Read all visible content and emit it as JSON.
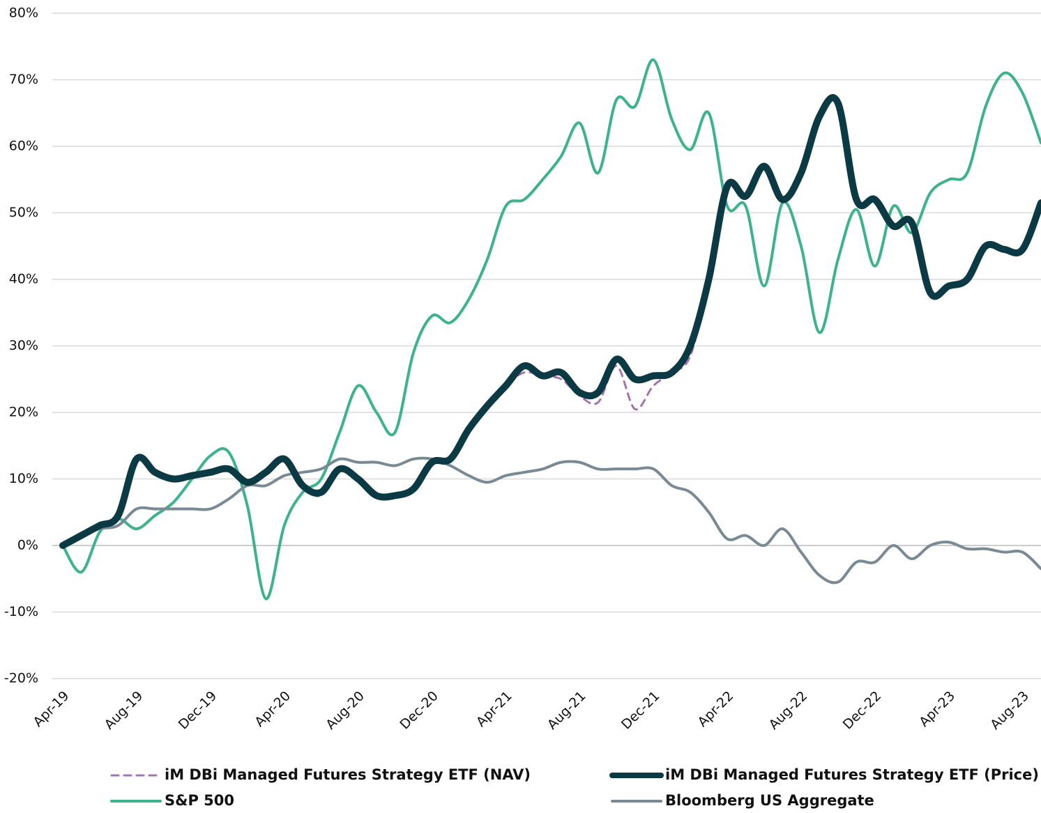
{
  "chart_data": {
    "type": "line",
    "categories": [
      "Apr-19",
      null,
      null,
      null,
      "Aug-19",
      null,
      null,
      null,
      "Dec-19",
      null,
      null,
      null,
      "Apr-20",
      null,
      null,
      null,
      "Aug-20",
      null,
      null,
      null,
      "Dec-20",
      null,
      null,
      null,
      "Apr-21",
      null,
      null,
      null,
      "Aug-21",
      null,
      null,
      null,
      "Dec-21",
      null,
      null,
      null,
      "Apr-22",
      null,
      null,
      null,
      "Aug-22",
      null,
      null,
      null,
      "Dec-22",
      null,
      null,
      null,
      "Apr-23",
      null,
      null,
      null,
      "Aug-23",
      null
    ],
    "ylim": [
      -20,
      80
    ],
    "yticks": [
      {
        "value": -20,
        "label": "-20%"
      },
      {
        "value": -10,
        "label": "-10%"
      },
      {
        "value": 0,
        "label": "0%"
      },
      {
        "value": 10,
        "label": "10%"
      },
      {
        "value": 20,
        "label": "20%"
      },
      {
        "value": 30,
        "label": "30%"
      },
      {
        "value": 40,
        "label": "40%"
      },
      {
        "value": 50,
        "label": "50%"
      },
      {
        "value": 60,
        "label": "60%"
      },
      {
        "value": 70,
        "label": "70%"
      },
      {
        "value": 80,
        "label": "80%"
      }
    ],
    "grid": true,
    "legend": "bottom",
    "series": [
      {
        "name": "iM DBi Managed Futures Strategy ETF (NAV)",
        "color": "#a572b4",
        "dashed": true,
        "line_width": 3,
        "values": [
          0,
          1.5,
          3,
          4.5,
          13,
          11,
          10,
          10.5,
          11,
          11.5,
          9.5,
          11,
          13,
          9,
          7.5,
          11.5,
          10,
          7.5,
          7.5,
          8.5,
          12.5,
          13,
          17.5,
          21,
          24,
          26,
          25.5,
          25,
          22.5,
          21.5,
          27,
          20.5,
          24,
          26,
          28.5,
          40,
          54,
          52.5,
          57,
          52,
          56,
          64.5,
          66.5,
          52,
          52,
          48,
          48.5,
          38,
          39,
          40,
          45,
          44.5,
          44.5,
          51.5
        ]
      },
      {
        "name": "S&P 500",
        "color": "#3cb38c",
        "dashed": false,
        "line_width": 4,
        "values": [
          0,
          -4,
          2,
          4,
          2.5,
          4.5,
          6.5,
          10,
          13.5,
          14,
          6,
          -8,
          3,
          8,
          10,
          17,
          24,
          20,
          17,
          29,
          34.5,
          33.5,
          37,
          43,
          51,
          52,
          55,
          58.5,
          63.5,
          56,
          67,
          66,
          73,
          64,
          59.5,
          65,
          51,
          51,
          39,
          51.5,
          45,
          32,
          43,
          50.5,
          42,
          51,
          47,
          53,
          55,
          56,
          66,
          71,
          68,
          60.5
        ]
      },
      {
        "name": "iM DBi Managed Futures Strategy ETF (Price)",
        "color": "#0b3a45",
        "dashed": false,
        "line_width": 10,
        "values": [
          0,
          1.5,
          3,
          4.5,
          13,
          11,
          10,
          10.5,
          11,
          11.5,
          9.5,
          11,
          13,
          9,
          8,
          11.5,
          10,
          7.5,
          7.5,
          8.5,
          12.5,
          13,
          17.5,
          21,
          24,
          27,
          25.5,
          26,
          23,
          23,
          28,
          25,
          25.5,
          26,
          30,
          40,
          54,
          52.5,
          57,
          52,
          56,
          64.5,
          66.5,
          52,
          52,
          48,
          48.5,
          38,
          39,
          40,
          45,
          44.5,
          44.5,
          51.5
        ]
      },
      {
        "name": "Bloomberg US Aggregate",
        "color": "#7a8a94",
        "dashed": false,
        "line_width": 4,
        "values": [
          0,
          1.5,
          2.5,
          3,
          5.5,
          5.5,
          5.5,
          5.5,
          5.5,
          7,
          9,
          9,
          10.5,
          11,
          11.5,
          13,
          12.5,
          12.5,
          12,
          13,
          13,
          12,
          10.5,
          9.5,
          10.5,
          11,
          11.5,
          12.5,
          12.5,
          11.5,
          11.5,
          11.5,
          11.5,
          9,
          8,
          5,
          1,
          1.5,
          0,
          2.5,
          -1,
          -4.5,
          -5.5,
          -2.5,
          -2.5,
          0,
          -2,
          0,
          0.5,
          -0.5,
          -0.5,
          -1,
          -1,
          -3.5
        ]
      }
    ]
  }
}
